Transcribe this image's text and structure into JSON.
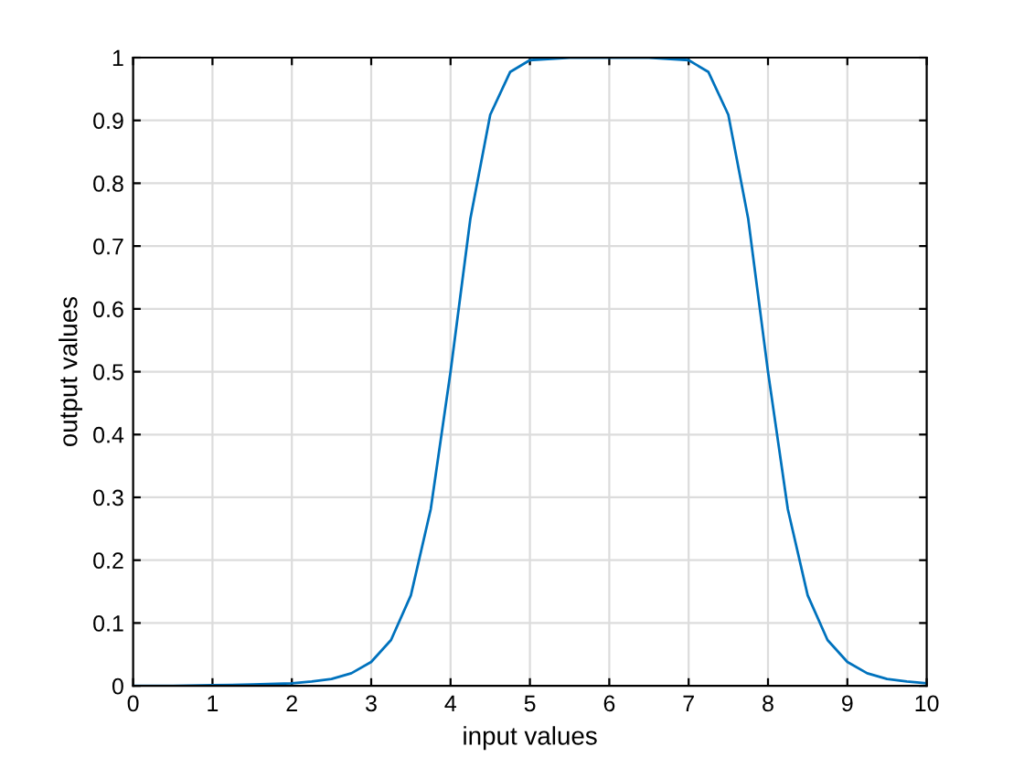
{
  "chart_data": {
    "type": "line",
    "xlabel": "input values",
    "ylabel": "output values",
    "x": [
      0,
      0.5,
      1,
      1.5,
      2,
      2.25,
      2.5,
      2.75,
      3,
      3.25,
      3.5,
      3.75,
      4,
      4.25,
      4.5,
      4.75,
      5,
      5.5,
      6,
      6.5,
      7,
      7.25,
      7.5,
      7.75,
      8,
      8.25,
      8.5,
      8.75,
      9,
      9.25,
      9.5,
      9.75,
      10
    ],
    "series": [
      {
        "color": "#0072bd",
        "values": [
          0.0,
          0.0,
          0.001,
          0.002,
          0.004,
          0.007,
          0.011,
          0.02,
          0.038,
          0.073,
          0.144,
          0.281,
          0.5,
          0.744,
          0.909,
          0.977,
          0.996,
          1.0,
          1.0,
          1.0,
          0.996,
          0.977,
          0.909,
          0.744,
          0.5,
          0.281,
          0.144,
          0.073,
          0.038,
          0.02,
          0.011,
          0.007,
          0.004
        ]
      }
    ],
    "xlim": [
      0,
      10
    ],
    "ylim": [
      0,
      1
    ],
    "xticks": [
      0,
      1,
      2,
      3,
      4,
      5,
      6,
      7,
      8,
      9,
      10
    ],
    "yticks": [
      0,
      0.1,
      0.2,
      0.3,
      0.4,
      0.5,
      0.6,
      0.7,
      0.8,
      0.9,
      1
    ],
    "grid": true,
    "marker": "none",
    "line_style": "solid"
  }
}
